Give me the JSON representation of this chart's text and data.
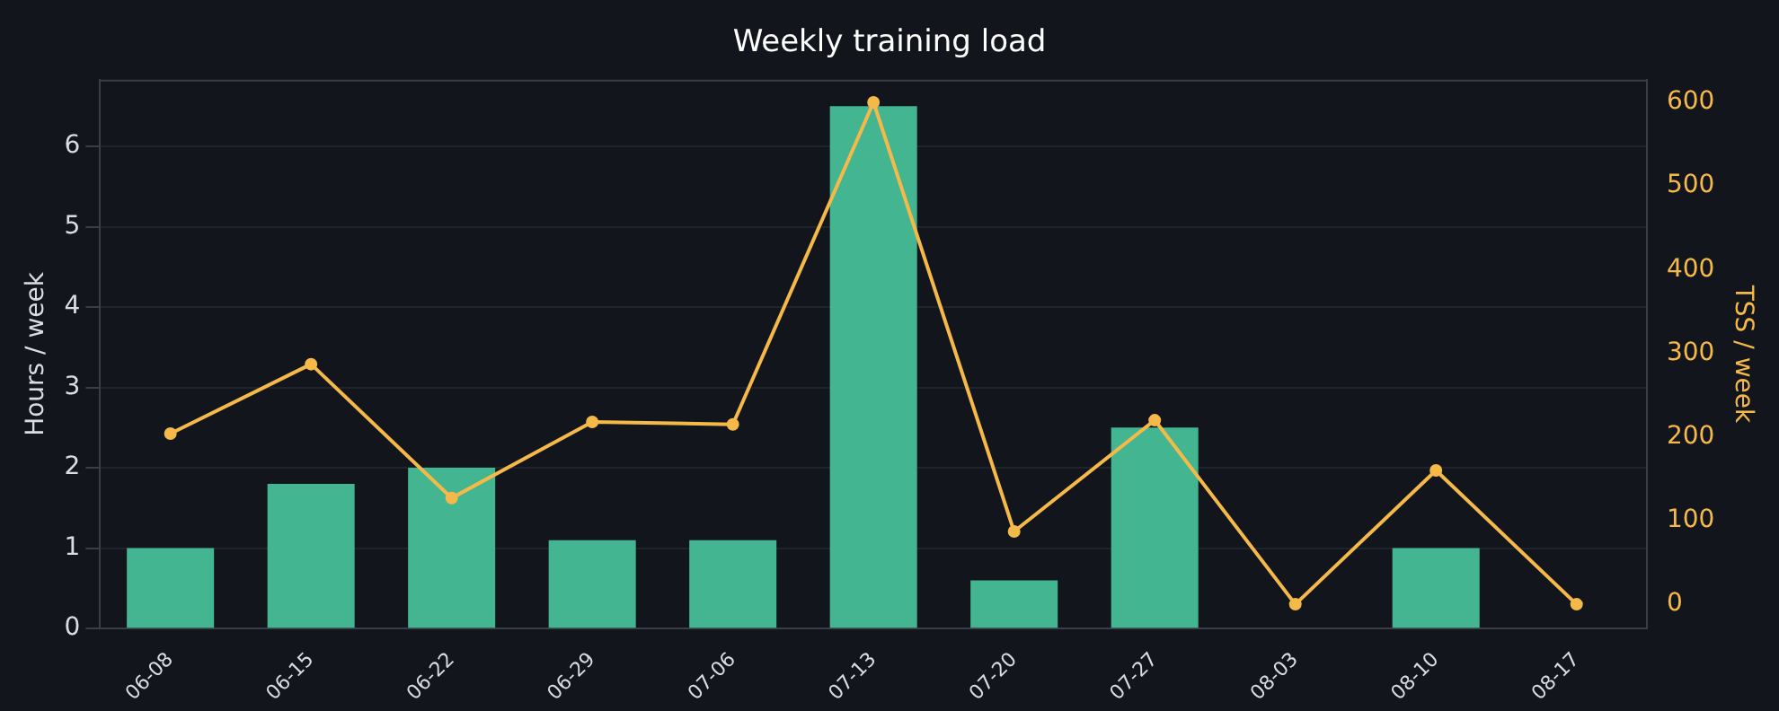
{
  "chart_data": {
    "type": "bar",
    "title": "Weekly training load",
    "ylabel": "Hours / week",
    "y2label": "TSS / week",
    "categories": [
      "06-08",
      "06-15",
      "06-22",
      "06-29",
      "07-06",
      "07-13",
      "07-20",
      "07-27",
      "08-03",
      "08-10",
      "08-17"
    ],
    "series": [
      {
        "color": "#43b591",
        "values": [
          1.0,
          1.8,
          2.0,
          1.1,
          1.1,
          6.5,
          0.6,
          2.5,
          0,
          1.0,
          0
        ]
      },
      {
        "type": "line",
        "axis": "y2",
        "color": "#f5b94a",
        "values": [
          204,
          287,
          127,
          218,
          215,
          600,
          87,
          220,
          0,
          160,
          0
        ]
      }
    ],
    "ylim": [
      0,
      6.83
    ],
    "yticks": [
      0,
      1,
      2,
      3,
      4,
      5,
      6
    ],
    "y2lim": [
      -29,
      627
    ],
    "y2ticks": [
      0,
      100,
      200,
      300,
      400,
      500,
      600
    ],
    "grid": "y",
    "marker": "circle",
    "legend": false
  }
}
